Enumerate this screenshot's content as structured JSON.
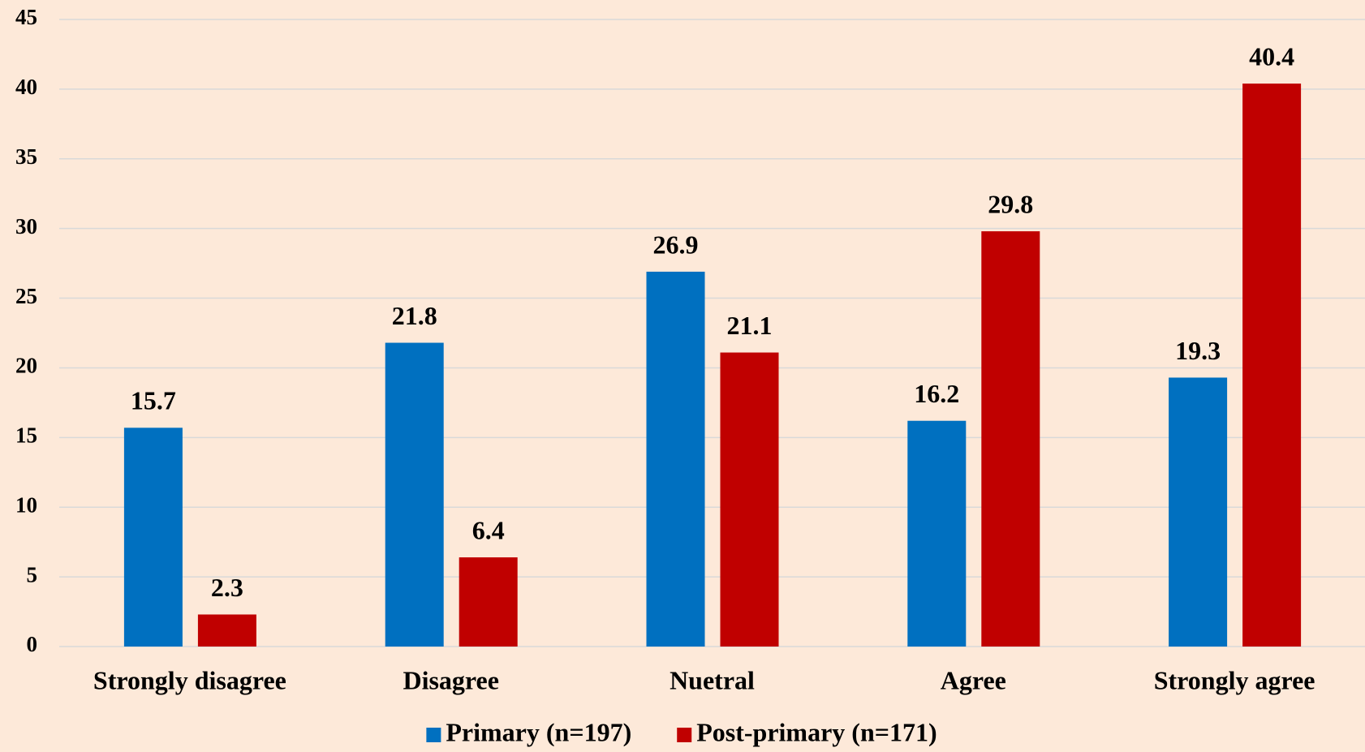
{
  "chart_data": {
    "type": "bar",
    "categories": [
      "Strongly disagree",
      "Disagree",
      "Nuetral",
      "Agree",
      "Strongly agree"
    ],
    "series": [
      {
        "name": "Primary (n=197)",
        "color": "#0070c0",
        "values": [
          15.7,
          21.8,
          26.9,
          16.2,
          19.3
        ]
      },
      {
        "name": "Post-primary (n=171)",
        "color": "#c00000",
        "values": [
          2.3,
          6.4,
          21.1,
          29.8,
          40.4
        ]
      }
    ],
    "ylim": [
      0,
      45
    ],
    "yticks": [
      0,
      5,
      10,
      15,
      20,
      25,
      30,
      35,
      40,
      45
    ],
    "grid": true,
    "legend": "bottom"
  }
}
